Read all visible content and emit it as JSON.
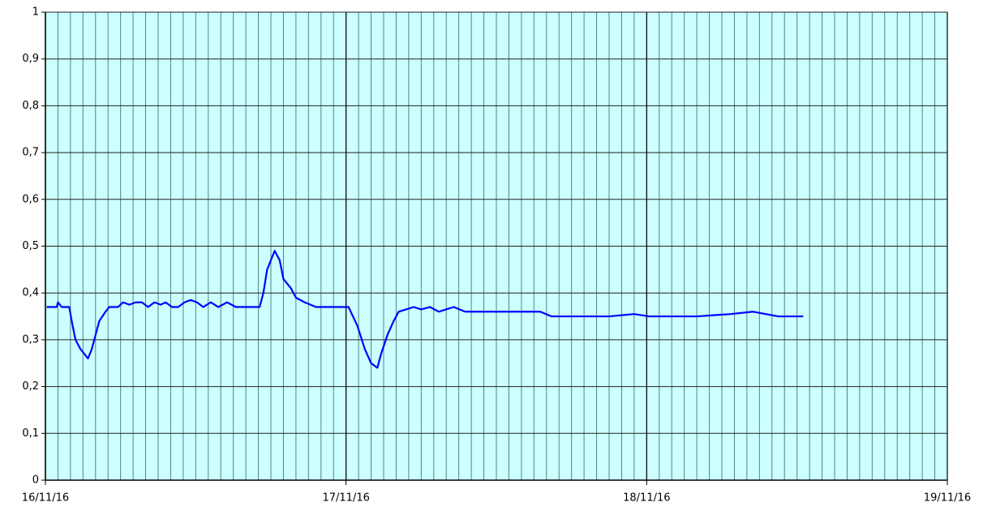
{
  "chart_data": {
    "type": "line",
    "x": [
      0.1,
      0.9,
      1.0,
      1.3,
      1.9,
      2.1,
      2.4,
      2.8,
      3.4,
      3.7,
      4.0,
      4.3,
      4.8,
      5.1,
      5.8,
      6.2,
      6.7,
      7.2,
      7.7,
      8.2,
      8.7,
      9.2,
      9.6,
      10.1,
      10.6,
      11.1,
      11.6,
      12.1,
      12.6,
      13.2,
      13.8,
      14.5,
      15.2,
      15.8,
      16.5,
      17.1,
      17.4,
      17.7,
      18.3,
      18.7,
      19.0,
      19.6,
      20.0,
      20.7,
      21.6,
      22.6,
      23.6,
      24.2,
      24.9,
      25.5,
      26.0,
      26.5,
      26.8,
      27.3,
      27.8,
      28.2,
      29.4,
      30.0,
      30.7,
      31.4,
      32.6,
      33.5,
      34.6,
      35.5,
      36.5,
      37.5,
      38.5,
      39.5,
      40.4,
      42.0,
      43.0,
      45.0,
      47.0,
      48.2,
      50.0,
      52.0,
      54.7,
      56.5,
      58.5,
      60.5
    ],
    "series": [
      {
        "color": "#0000ff",
        "values": [
          0.37,
          0.37,
          0.38,
          0.37,
          0.37,
          0.34,
          0.3,
          0.28,
          0.26,
          0.28,
          0.31,
          0.34,
          0.36,
          0.37,
          0.37,
          0.38,
          0.375,
          0.38,
          0.38,
          0.37,
          0.38,
          0.375,
          0.38,
          0.37,
          0.37,
          0.38,
          0.385,
          0.38,
          0.37,
          0.38,
          0.37,
          0.38,
          0.37,
          0.37,
          0.37,
          0.37,
          0.4,
          0.45,
          0.49,
          0.47,
          0.43,
          0.41,
          0.39,
          0.38,
          0.37,
          0.37,
          0.37,
          0.37,
          0.33,
          0.28,
          0.25,
          0.24,
          0.27,
          0.31,
          0.34,
          0.36,
          0.37,
          0.365,
          0.37,
          0.36,
          0.37,
          0.36,
          0.36,
          0.36,
          0.36,
          0.36,
          0.36,
          0.36,
          0.35,
          0.35,
          0.35,
          0.35,
          0.355,
          0.35,
          0.35,
          0.35,
          0.355,
          0.36,
          0.35,
          0.35
        ]
      }
    ],
    "xlim": [
      0,
      72
    ],
    "xticks": [
      {
        "value": 0,
        "label": "16/11/16"
      },
      {
        "value": 24,
        "label": "17/11/16"
      },
      {
        "value": 48,
        "label": "18/11/16"
      },
      {
        "value": 72,
        "label": "19/11/16"
      }
    ],
    "x_minor_grid_step": 1,
    "ylim": [
      0,
      1
    ],
    "yticks": [
      0,
      {
        "value": 0.1,
        "label": "0,1"
      },
      {
        "value": 0.2,
        "label": "0,2"
      },
      {
        "value": 0.3,
        "label": "0,3"
      },
      {
        "value": 0.4,
        "label": "0,4"
      },
      {
        "value": 0.5,
        "label": "0,5"
      },
      {
        "value": 0.6,
        "label": "0,6"
      },
      {
        "value": 0.7,
        "label": "0,7"
      },
      {
        "value": 0.8,
        "label": "0,8"
      },
      {
        "value": 0.9,
        "label": "0,9"
      },
      1
    ],
    "grid": true,
    "background": "#ccffff"
  }
}
